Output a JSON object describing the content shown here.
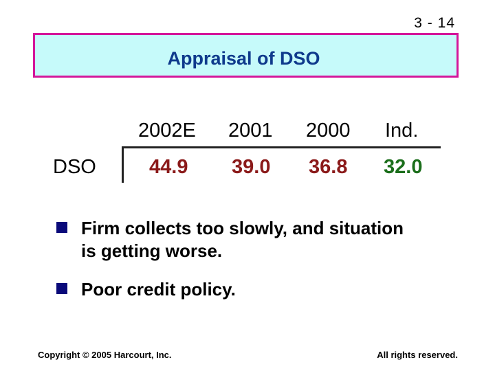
{
  "slide_number": "3 - 14",
  "title": "Appraisal of DSO",
  "table": {
    "headers": [
      "2002E",
      "2001",
      "2000",
      "Ind."
    ],
    "row_label": "DSO",
    "values": [
      "44.9",
      "39.0",
      "36.8",
      "32.0"
    ]
  },
  "bullets": [
    "Firm collects too slowly, and situation is getting worse.",
    "Poor credit policy."
  ],
  "colors": {
    "title_box_fill": "#c6fafa",
    "title_box_border": "#d4169a",
    "title_text": "#0f3a8c",
    "firm_values": "#8b1a1a",
    "industry_value": "#1b6e1b",
    "bullet_square": "#0a0a7a"
  },
  "footer": {
    "copyright": "Copyright © 2005 Harcourt, Inc.",
    "rights": "All rights reserved."
  }
}
